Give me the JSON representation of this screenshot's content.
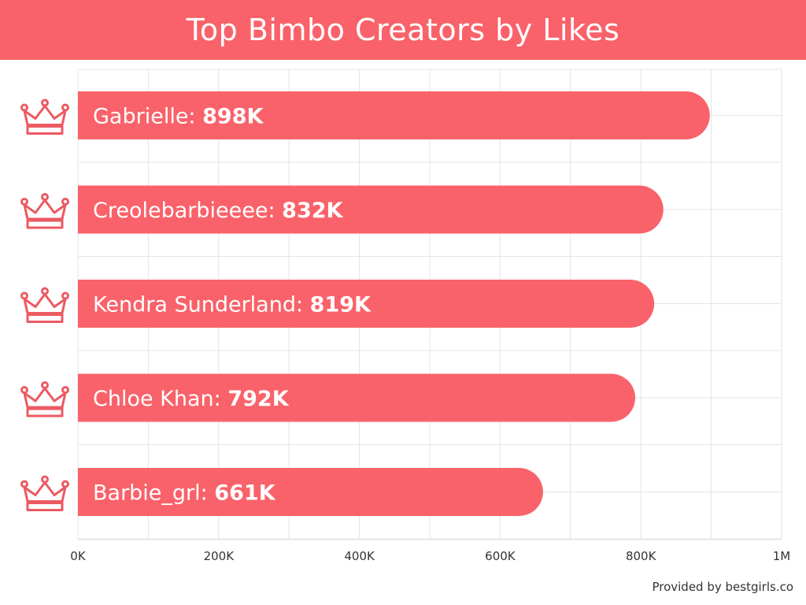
{
  "title": "Top Bimbo Creators by Likes",
  "footer": "Provided by bestgirls.co",
  "colors": {
    "bar": "#f9626a",
    "banner": "#f9626a",
    "crown": "#ec5a62",
    "grid": "#e4e4e4"
  },
  "chart_data": {
    "type": "bar",
    "orientation": "horizontal",
    "title": "Top Bimbo Creators by Likes",
    "categories": [
      "Gabrielle",
      "Creolebarbieeee",
      "Kendra Sunderland",
      "Chloe Khan",
      "Barbie_grl"
    ],
    "values": [
      898000,
      832000,
      819000,
      792000,
      661000
    ],
    "value_labels": [
      "898K",
      "832K",
      "819K",
      "792K",
      "661K"
    ],
    "xlim": [
      0,
      1000000
    ],
    "xticks": [
      0,
      200000,
      400000,
      600000,
      800000,
      1000000
    ],
    "xtick_labels": [
      "0K",
      "200K",
      "400K",
      "600K",
      "800K",
      "1M"
    ],
    "grid": true,
    "row_icon": "crown-icon"
  }
}
